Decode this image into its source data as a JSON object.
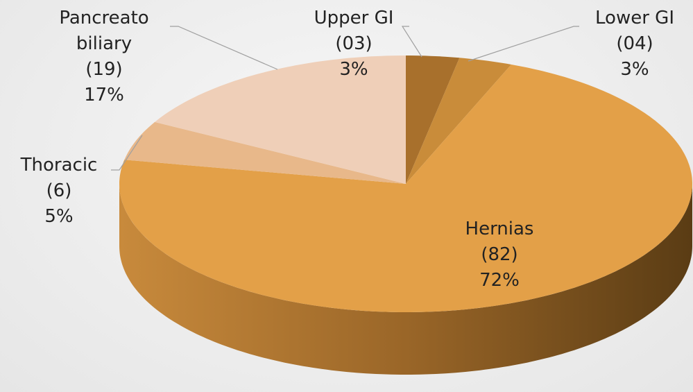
{
  "chart_data": {
    "type": "pie3d",
    "categories": [
      "Upper GI",
      "Lower GI",
      "Hernias",
      "Thoracic",
      "Pancreato biliary"
    ],
    "count_labels": [
      "(03)",
      "(04)",
      "(82)",
      "(6)",
      "(19)"
    ],
    "values": [
      3,
      3,
      72,
      5,
      17
    ],
    "value_labels": [
      "3%",
      "3%",
      "72%",
      "5%",
      "17%"
    ],
    "colors": [
      "#a8702c",
      "#c98c3a",
      "#e3a048",
      "#e8b88a",
      "#efcfb8"
    ]
  }
}
